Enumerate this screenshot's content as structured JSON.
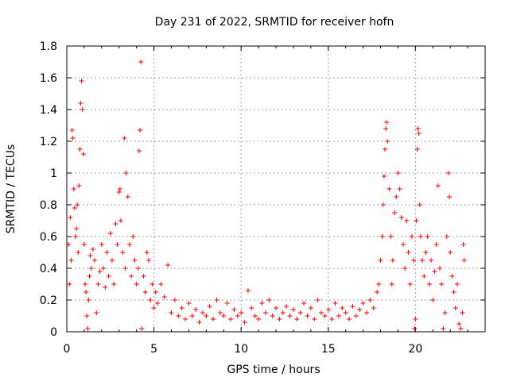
{
  "chart_data": {
    "type": "scatter",
    "title": "Day 231 of 2022, SRMTID for receiver hofn",
    "xlabel": "GPS time / hours",
    "ylabel": "SRMTID / TECUs",
    "xlim": [
      0,
      24
    ],
    "ylim": [
      0,
      1.8
    ],
    "xticks": [
      "0",
      "5",
      "10",
      "15",
      "20"
    ],
    "yticks": [
      "0",
      "0.2",
      "0.4",
      "0.6",
      "0.8",
      "1",
      "1.2",
      "1.4",
      "1.6",
      "1.8"
    ],
    "grid": true,
    "marker": "+",
    "color": "#ff0000",
    "series": [
      {
        "name": "SRMTID",
        "points": [
          [
            0.1,
            0.55
          ],
          [
            0.15,
            0.3
          ],
          [
            0.2,
            0.72
          ],
          [
            0.25,
            0.45
          ],
          [
            0.3,
            1.27
          ],
          [
            0.35,
            1.22
          ],
          [
            0.4,
            0.9
          ],
          [
            0.45,
            0.78
          ],
          [
            0.5,
            0.6
          ],
          [
            0.55,
            0.65
          ],
          [
            0.6,
            0.8
          ],
          [
            0.65,
            0.5
          ],
          [
            0.7,
            0.92
          ],
          [
            0.75,
            1.15
          ],
          [
            0.8,
            1.44
          ],
          [
            0.85,
            1.58
          ],
          [
            0.9,
            1.4
          ],
          [
            0.95,
            1.12
          ],
          [
            1.0,
            0.55
          ],
          [
            1.05,
            0.3
          ],
          [
            1.1,
            0.25
          ],
          [
            1.15,
            0.1
          ],
          [
            1.2,
            0.02
          ],
          [
            1.25,
            0.2
          ],
          [
            1.3,
            0.35
          ],
          [
            1.35,
            0.48
          ],
          [
            1.4,
            0.4
          ],
          [
            1.5,
            0.52
          ],
          [
            1.6,
            0.45
          ],
          [
            1.7,
            0.12
          ],
          [
            1.8,
            0.3
          ],
          [
            1.9,
            0.38
          ],
          [
            2.0,
            0.55
          ],
          [
            2.1,
            0.4
          ],
          [
            2.2,
            0.28
          ],
          [
            2.3,
            0.5
          ],
          [
            2.4,
            0.35
          ],
          [
            2.5,
            0.62
          ],
          [
            2.6,
            0.45
          ],
          [
            2.7,
            0.3
          ],
          [
            2.8,
            0.68
          ],
          [
            2.9,
            0.55
          ],
          [
            3.0,
            0.88
          ],
          [
            3.05,
            0.9
          ],
          [
            3.1,
            0.7
          ],
          [
            3.2,
            0.5
          ],
          [
            3.3,
            1.22
          ],
          [
            3.35,
            0.4
          ],
          [
            3.4,
            1.0
          ],
          [
            3.5,
            0.85
          ],
          [
            3.6,
            0.55
          ],
          [
            3.7,
            0.35
          ],
          [
            3.8,
            0.6
          ],
          [
            3.9,
            0.45
          ],
          [
            4.0,
            0.3
          ],
          [
            4.1,
            0.4
          ],
          [
            4.15,
            1.14
          ],
          [
            4.2,
            1.27
          ],
          [
            4.25,
            1.7
          ],
          [
            4.3,
            0.02
          ],
          [
            4.4,
            0.35
          ],
          [
            4.5,
            0.25
          ],
          [
            4.6,
            0.5
          ],
          [
            4.7,
            0.45
          ],
          [
            4.8,
            0.2
          ],
          [
            4.9,
            0.3
          ],
          [
            5.0,
            0.15
          ],
          [
            5.1,
            0.25
          ],
          [
            5.2,
            0.18
          ],
          [
            5.4,
            0.3
          ],
          [
            5.6,
            0.22
          ],
          [
            5.8,
            0.42
          ],
          [
            6.0,
            0.12
          ],
          [
            6.2,
            0.2
          ],
          [
            6.4,
            0.1
          ],
          [
            6.6,
            0.15
          ],
          [
            6.8,
            0.08
          ],
          [
            7.0,
            0.18
          ],
          [
            7.2,
            0.1
          ],
          [
            7.4,
            0.14
          ],
          [
            7.6,
            0.06
          ],
          [
            7.8,
            0.12
          ],
          [
            8.0,
            0.1
          ],
          [
            8.2,
            0.16
          ],
          [
            8.4,
            0.08
          ],
          [
            8.6,
            0.2
          ],
          [
            8.8,
            0.12
          ],
          [
            9.0,
            0.1
          ],
          [
            9.2,
            0.18
          ],
          [
            9.4,
            0.08
          ],
          [
            9.6,
            0.14
          ],
          [
            9.8,
            0.1
          ],
          [
            10.0,
            0.12
          ],
          [
            10.2,
            0.06
          ],
          [
            10.4,
            0.26
          ],
          [
            10.6,
            0.15
          ],
          [
            10.8,
            0.1
          ],
          [
            11.0,
            0.08
          ],
          [
            11.2,
            0.18
          ],
          [
            11.4,
            0.12
          ],
          [
            11.6,
            0.2
          ],
          [
            11.8,
            0.1
          ],
          [
            12.0,
            0.15
          ],
          [
            12.2,
            0.08
          ],
          [
            12.4,
            0.12
          ],
          [
            12.6,
            0.16
          ],
          [
            12.8,
            0.1
          ],
          [
            13.0,
            0.14
          ],
          [
            13.2,
            0.08
          ],
          [
            13.4,
            0.12
          ],
          [
            13.6,
            0.18
          ],
          [
            13.8,
            0.1
          ],
          [
            14.0,
            0.15
          ],
          [
            14.2,
            0.08
          ],
          [
            14.4,
            0.2
          ],
          [
            14.6,
            0.12
          ],
          [
            14.8,
            0.1
          ],
          [
            15.0,
            0.14
          ],
          [
            15.2,
            0.08
          ],
          [
            15.4,
            0.18
          ],
          [
            15.6,
            0.1
          ],
          [
            15.8,
            0.15
          ],
          [
            16.0,
            0.12
          ],
          [
            16.2,
            0.08
          ],
          [
            16.4,
            0.16
          ],
          [
            16.6,
            0.1
          ],
          [
            16.8,
            0.14
          ],
          [
            17.0,
            0.18
          ],
          [
            17.2,
            0.12
          ],
          [
            17.4,
            0.2
          ],
          [
            17.6,
            0.15
          ],
          [
            17.8,
            0.25
          ],
          [
            17.9,
            0.3
          ],
          [
            18.0,
            0.45
          ],
          [
            18.1,
            0.6
          ],
          [
            18.15,
            0.8
          ],
          [
            18.2,
            0.98
          ],
          [
            18.25,
            1.15
          ],
          [
            18.3,
            1.28
          ],
          [
            18.35,
            1.32
          ],
          [
            18.4,
            1.2
          ],
          [
            18.5,
            0.9
          ],
          [
            18.6,
            0.6
          ],
          [
            18.65,
            0.3
          ],
          [
            18.7,
            0.45
          ],
          [
            18.8,
            0.75
          ],
          [
            18.9,
            0.85
          ],
          [
            19.0,
            1.0
          ],
          [
            19.1,
            0.9
          ],
          [
            19.2,
            0.72
          ],
          [
            19.3,
            0.55
          ],
          [
            19.4,
            0.4
          ],
          [
            19.5,
            0.7
          ],
          [
            19.6,
            0.5
          ],
          [
            19.7,
            0.3
          ],
          [
            19.8,
            0.6
          ],
          [
            19.9,
            0.45
          ],
          [
            19.95,
            0.02
          ],
          [
            20.0,
            0.08
          ],
          [
            20.05,
            0.7
          ],
          [
            20.1,
            1.15
          ],
          [
            20.15,
            1.28
          ],
          [
            20.2,
            1.25
          ],
          [
            20.25,
            0.8
          ],
          [
            20.3,
            0.6
          ],
          [
            20.4,
            0.45
          ],
          [
            20.5,
            0.35
          ],
          [
            20.6,
            0.5
          ],
          [
            20.7,
            0.6
          ],
          [
            20.8,
            0.3
          ],
          [
            20.9,
            0.45
          ],
          [
            21.0,
            0.2
          ],
          [
            21.1,
            0.38
          ],
          [
            21.2,
            0.55
          ],
          [
            21.3,
            0.92
          ],
          [
            21.4,
            0.4
          ],
          [
            21.5,
            0.3
          ],
          [
            21.6,
            0.02
          ],
          [
            21.7,
            0.12
          ],
          [
            21.8,
            0.6
          ],
          [
            21.9,
            1.0
          ],
          [
            21.95,
            0.85
          ],
          [
            22.0,
            0.5
          ],
          [
            22.1,
            0.35
          ],
          [
            22.2,
            0.25
          ],
          [
            22.3,
            0.15
          ],
          [
            22.4,
            0.3
          ],
          [
            22.5,
            0.05
          ],
          [
            22.6,
            0.02
          ],
          [
            22.7,
            0.12
          ],
          [
            22.75,
            0.55
          ],
          [
            22.8,
            0.45
          ]
        ]
      }
    ]
  }
}
